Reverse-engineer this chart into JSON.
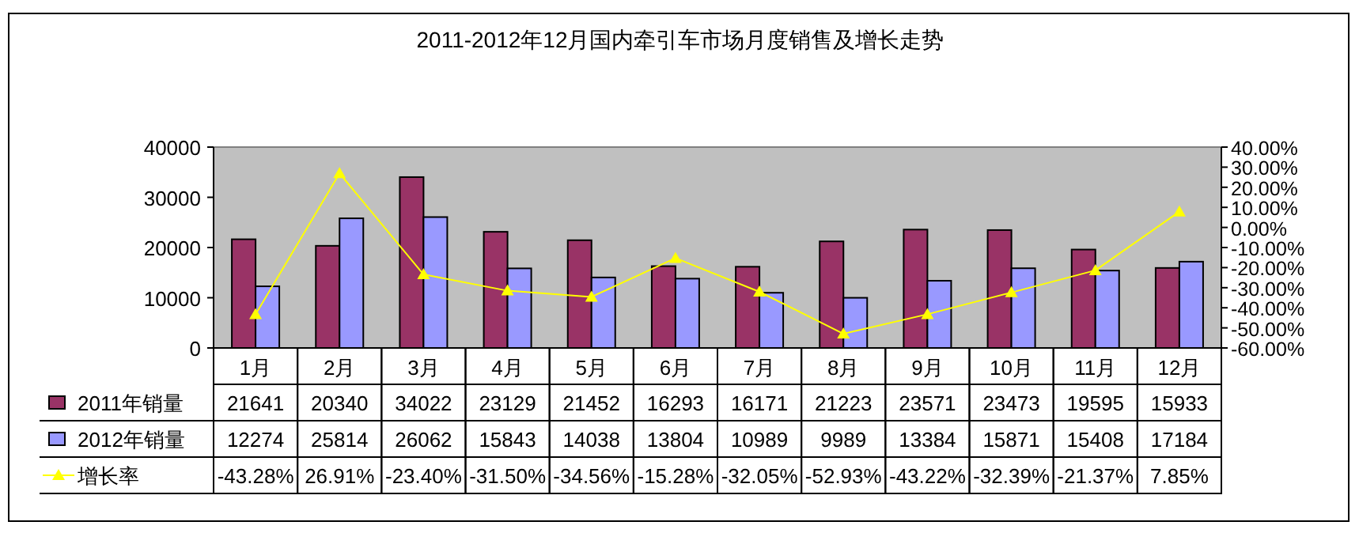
{
  "chart_data": {
    "type": "bar",
    "title": "2011-2012年12月国内牵引车市场月度销售及增长走势",
    "categories": [
      "1月",
      "2月",
      "3月",
      "4月",
      "5月",
      "6月",
      "7月",
      "8月",
      "9月",
      "10月",
      "11月",
      "12月"
    ],
    "series": [
      {
        "name": "2011年销量",
        "color": "#993366",
        "values": [
          21641,
          20340,
          34022,
          23129,
          21452,
          16293,
          16171,
          21223,
          23571,
          23473,
          19595,
          15933
        ],
        "value_labels": [
          "21641",
          "20340",
          "34022",
          "23129",
          "21452",
          "16293",
          "16171",
          "21223",
          "23571",
          "23473",
          "19595",
          "15933"
        ]
      },
      {
        "name": "2012年销量",
        "color": "#9999ff",
        "values": [
          12274,
          25814,
          26062,
          15843,
          14038,
          13804,
          10989,
          9989,
          13384,
          15871,
          15408,
          17184
        ],
        "value_labels": [
          "12274",
          "25814",
          "26062",
          "15843",
          "14038",
          "13804",
          "10989",
          "9989",
          "13384",
          "15871",
          "15408",
          "17184"
        ]
      },
      {
        "name": "增长率",
        "type": "line",
        "axis": "y2",
        "color": "#ffff00",
        "marker": "triangle",
        "values": [
          -43.28,
          26.91,
          -23.4,
          -31.5,
          -34.56,
          -15.28,
          -32.05,
          -52.93,
          -43.22,
          -32.39,
          -21.37,
          7.85
        ],
        "value_labels": [
          "-43.28%",
          "26.91%",
          "-23.40%",
          "-31.50%",
          "-34.56%",
          "-15.28%",
          "-32.05%",
          "-52.93%",
          "-43.22%",
          "-32.39%",
          "-21.37%",
          "7.85%"
        ]
      }
    ],
    "ylim": [
      0,
      40000
    ],
    "yticks": [
      0,
      10000,
      20000,
      30000,
      40000
    ],
    "y2lim": [
      -60,
      40
    ],
    "y2ticks": [
      {
        "value": -60,
        "label": "-60.00%"
      },
      {
        "value": -50,
        "label": "-50.00%"
      },
      {
        "value": -40,
        "label": "-40.00%"
      },
      {
        "value": -30,
        "label": "-30.00%"
      },
      {
        "value": -20,
        "label": "-20.00%"
      },
      {
        "value": -10,
        "label": "-10.00%"
      },
      {
        "value": 0,
        "label": "0.00%"
      },
      {
        "value": 10,
        "label": "10.00%"
      },
      {
        "value": 20,
        "label": "20.00%"
      },
      {
        "value": 30,
        "label": "30.00%"
      },
      {
        "value": 40,
        "label": "40.00%"
      }
    ],
    "legend": "bottom left"
  }
}
